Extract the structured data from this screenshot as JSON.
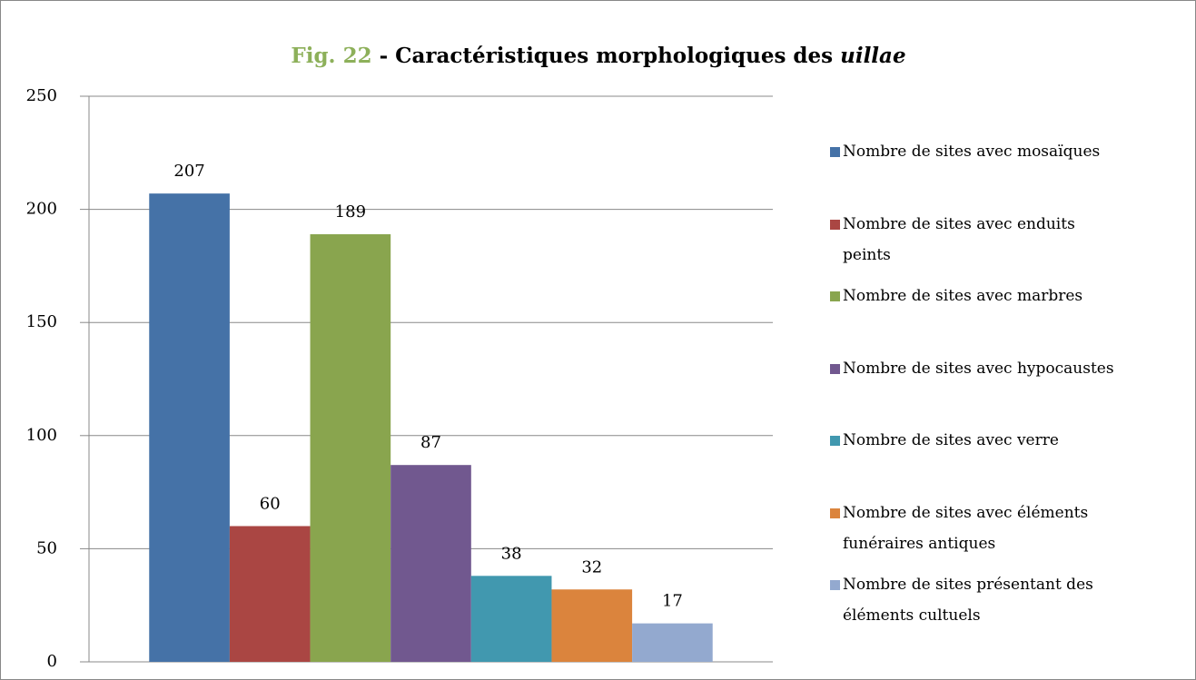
{
  "chart_data": {
    "type": "bar",
    "title": [
      "Fig. 22",
      "- Caractéristiques morphologiques des",
      "uillae"
    ],
    "title_colors": [
      "#8db05a",
      "#000000",
      "#000000"
    ],
    "categories": [
      null
    ],
    "series": [
      {
        "name": "Nombre de sites avec mosaïques",
        "color": "#4572a7",
        "values": [
          207
        ]
      },
      {
        "name": "Nombre de sites avec enduits peints",
        "color": "#aa4643",
        "values": [
          60
        ]
      },
      {
        "name": "Nombre de sites avec marbres",
        "color": "#89a54e",
        "values": [
          189
        ]
      },
      {
        "name": "Nombre de sites avec hypocaustes",
        "color": "#71588f",
        "values": [
          87
        ]
      },
      {
        "name": "Nombre de sites avec verre",
        "color": "#4198af",
        "values": [
          38
        ]
      },
      {
        "name": "Nombre de sites avec éléments funéraires antiques",
        "color": "#db843d",
        "values": [
          32
        ]
      },
      {
        "name": "Nombre de sites présentant des éléments cultuels",
        "color": "#93a9cf",
        "values": [
          17
        ]
      }
    ],
    "ylim": [
      0,
      250
    ],
    "yticks": [
      0,
      50,
      100,
      150,
      200,
      250
    ],
    "grid": true,
    "legend": "right"
  }
}
